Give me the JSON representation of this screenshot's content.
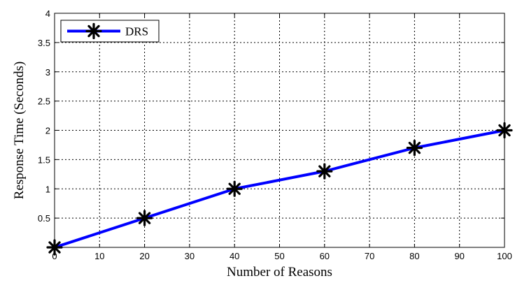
{
  "chart_data": {
    "type": "line",
    "title": "",
    "xlabel": "Number of Reasons",
    "ylabel": "Response Time (Seconds)",
    "xlim": [
      0,
      100
    ],
    "ylim": [
      0,
      4
    ],
    "xticks": [
      0,
      10,
      20,
      30,
      40,
      50,
      60,
      70,
      80,
      90,
      100
    ],
    "yticks": [
      0,
      0.5,
      1,
      1.5,
      2,
      2.5,
      3,
      3.5,
      4
    ],
    "xtick_labels": [
      "0",
      "10",
      "20",
      "30",
      "40",
      "50",
      "60",
      "70",
      "80",
      "90",
      "100"
    ],
    "ytick_labels": [
      "",
      "0.5",
      "1",
      "1.5",
      "2",
      "2.5",
      "3",
      "3.5",
      "4"
    ],
    "grid": true,
    "legend_position": "top-left",
    "series": [
      {
        "name": "DRS",
        "color": "#0000ff",
        "marker": "asterisk",
        "x": [
          0,
          20,
          40,
          60,
          80,
          100
        ],
        "y": [
          0,
          0.5,
          1.0,
          1.3,
          1.7,
          2.0
        ]
      }
    ]
  }
}
